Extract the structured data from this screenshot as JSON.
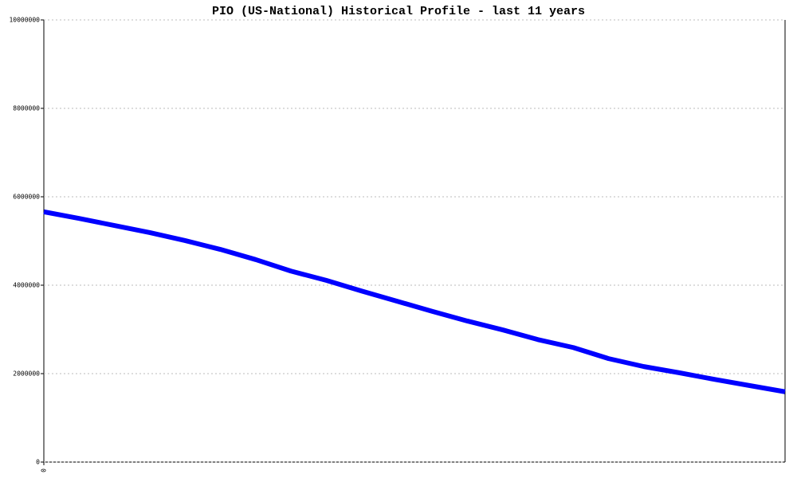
{
  "chart_data": {
    "type": "line",
    "title": "PIO (US-National) Historical Profile - last 11 years",
    "categories": [
      "0",
      null,
      null,
      null,
      null,
      null,
      null,
      null,
      null,
      null,
      null,
      null,
      null,
      null,
      null,
      null,
      null,
      null,
      null,
      null,
      null,
      null
    ],
    "series": [
      {
        "color": "#0000ff",
        "values": [
          5660000,
          5510000,
          5350000,
          5190000,
          5010000,
          4810000,
          4580000,
          4320000,
          4110000,
          3870000,
          3640000,
          3410000,
          3190000,
          2990000,
          2770000,
          2590000,
          2340000,
          2160000,
          2020000,
          1870000,
          1730000,
          1590000
        ]
      }
    ],
    "ylim": [
      0,
      10000000
    ],
    "yticks": [
      0,
      2000000,
      4000000,
      6000000,
      8000000,
      10000000
    ],
    "grid": true
  }
}
